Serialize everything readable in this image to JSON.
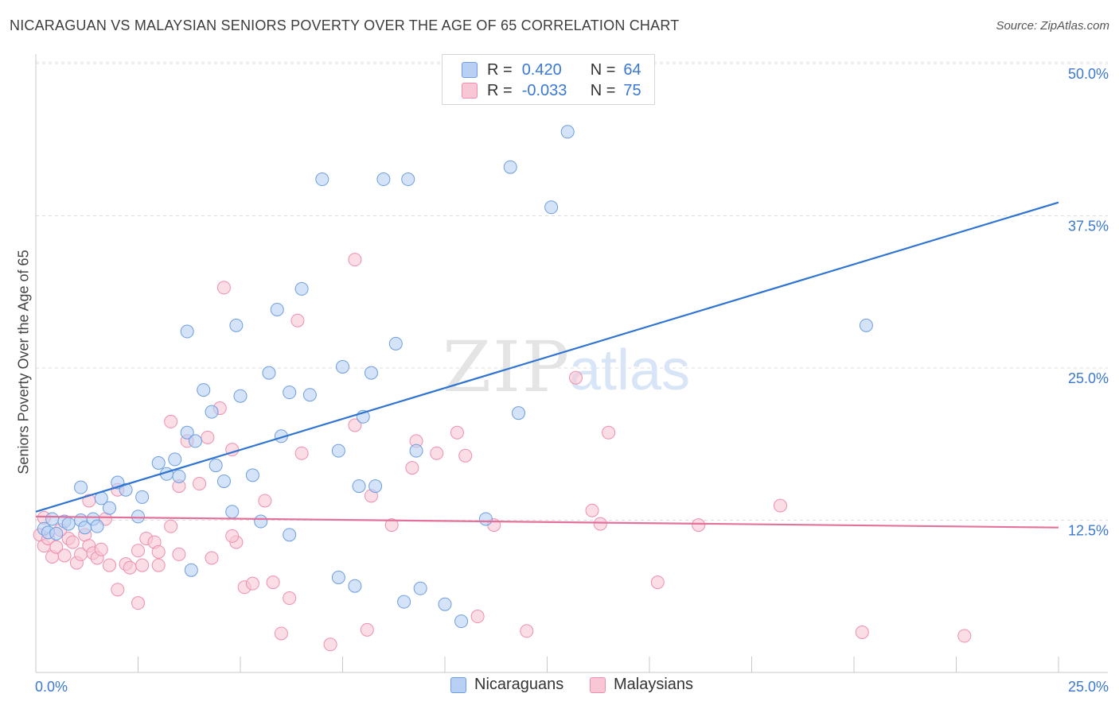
{
  "title": "NICARAGUAN VS MALAYSIAN SENIORS POVERTY OVER THE AGE OF 65 CORRELATION CHART",
  "source": "Source: ZipAtlas.com",
  "watermark": {
    "zip": "ZIP",
    "atlas": "atlas"
  },
  "legend_top": [
    {
      "r_label": "R =",
      "r_value": "0.420",
      "n_label": "N =",
      "n_value": "64"
    },
    {
      "r_label": "R =",
      "r_value": "-0.033",
      "n_label": "N =",
      "n_value": "75"
    }
  ],
  "legend_bottom": [
    "Nicaraguans",
    "Malaysians"
  ],
  "colors": {
    "blue_fill": "#b8d0f4",
    "blue_stroke": "#6d9ee0",
    "blue_line": "#2f74d0",
    "pink_fill": "#f9c6d6",
    "pink_stroke": "#ee8fae",
    "pink_line": "#e4719b",
    "tick_text": "#3a78d4"
  },
  "chart_data": {
    "type": "scatter",
    "xlabel": "",
    "ylabel": "Seniors Poverty Over the Age of 65",
    "xlim": [
      0,
      25
    ],
    "ylim": [
      0,
      50
    ],
    "x_tick_labels": [
      "0.0%",
      "25.0%"
    ],
    "y_ticks": [
      12.5,
      25,
      37.5,
      50
    ],
    "y_tick_labels": [
      "12.5%",
      "25.0%",
      "37.5%",
      "50.0%"
    ],
    "series": [
      {
        "name": "Nicaraguans",
        "r": 0.42,
        "n": 64,
        "trend": [
          [
            0,
            13.2
          ],
          [
            25,
            38.6
          ]
        ],
        "points": [
          [
            0.2,
            11.8
          ],
          [
            0.3,
            11.5
          ],
          [
            0.4,
            12.6
          ],
          [
            0.5,
            11.4
          ],
          [
            0.7,
            12.4
          ],
          [
            0.8,
            12.2
          ],
          [
            1.1,
            12.5
          ],
          [
            1.2,
            11.9
          ],
          [
            1.4,
            12.6
          ],
          [
            1.5,
            12.0
          ],
          [
            1.1,
            15.2
          ],
          [
            1.6,
            14.3
          ],
          [
            1.8,
            13.5
          ],
          [
            2.0,
            15.6
          ],
          [
            2.2,
            15.0
          ],
          [
            2.6,
            14.4
          ],
          [
            2.5,
            12.8
          ],
          [
            3.0,
            17.2
          ],
          [
            3.2,
            16.3
          ],
          [
            3.4,
            17.5
          ],
          [
            3.5,
            16.1
          ],
          [
            3.7,
            19.7
          ],
          [
            3.9,
            19.0
          ],
          [
            3.7,
            28.0
          ],
          [
            4.1,
            23.2
          ],
          [
            4.3,
            21.4
          ],
          [
            4.4,
            17.0
          ],
          [
            4.6,
            15.7
          ],
          [
            4.9,
            28.5
          ],
          [
            5.0,
            22.7
          ],
          [
            5.3,
            16.2
          ],
          [
            5.7,
            24.6
          ],
          [
            5.9,
            29.8
          ],
          [
            6.0,
            19.4
          ],
          [
            6.2,
            23.0
          ],
          [
            6.5,
            31.5
          ],
          [
            6.7,
            22.8
          ],
          [
            7.0,
            40.5
          ],
          [
            7.4,
            18.2
          ],
          [
            7.5,
            25.1
          ],
          [
            7.9,
            15.3
          ],
          [
            8.0,
            21.0
          ],
          [
            8.2,
            24.6
          ],
          [
            8.3,
            15.3
          ],
          [
            8.8,
            27.0
          ],
          [
            8.5,
            40.5
          ],
          [
            9.1,
            40.5
          ],
          [
            9.3,
            18.2
          ],
          [
            11.0,
            12.6
          ],
          [
            11.6,
            41.5
          ],
          [
            11.8,
            21.3
          ],
          [
            12.6,
            38.2
          ],
          [
            13.0,
            44.4
          ],
          [
            20.3,
            28.5
          ],
          [
            7.8,
            7.1
          ],
          [
            7.4,
            7.8
          ],
          [
            9.4,
            6.9
          ],
          [
            9.0,
            5.8
          ],
          [
            10.0,
            5.6
          ],
          [
            10.4,
            4.2
          ],
          [
            6.2,
            11.3
          ],
          [
            5.5,
            12.4
          ],
          [
            4.8,
            13.2
          ],
          [
            3.8,
            8.4
          ]
        ]
      },
      {
        "name": "Malaysians",
        "r": -0.033,
        "n": 75,
        "trend": [
          [
            0,
            12.8
          ],
          [
            25,
            11.9
          ]
        ],
        "points": [
          [
            0.1,
            11.3
          ],
          [
            0.2,
            10.4
          ],
          [
            0.3,
            11.0
          ],
          [
            0.4,
            9.5
          ],
          [
            0.5,
            10.3
          ],
          [
            0.7,
            9.6
          ],
          [
            0.8,
            11.0
          ],
          [
            0.9,
            10.7
          ],
          [
            1.0,
            9.0
          ],
          [
            1.1,
            9.7
          ],
          [
            1.2,
            11.3
          ],
          [
            1.3,
            10.4
          ],
          [
            1.4,
            9.8
          ],
          [
            1.5,
            9.4
          ],
          [
            1.6,
            10.1
          ],
          [
            1.7,
            12.6
          ],
          [
            1.8,
            8.8
          ],
          [
            2.0,
            15.0
          ],
          [
            2.2,
            8.9
          ],
          [
            2.3,
            8.6
          ],
          [
            2.5,
            10.0
          ],
          [
            2.6,
            8.8
          ],
          [
            2.7,
            11.0
          ],
          [
            2.9,
            10.7
          ],
          [
            3.0,
            9.9
          ],
          [
            3.3,
            20.6
          ],
          [
            3.5,
            9.7
          ],
          [
            3.5,
            15.3
          ],
          [
            3.7,
            19.0
          ],
          [
            4.0,
            15.5
          ],
          [
            4.2,
            19.3
          ],
          [
            4.5,
            21.7
          ],
          [
            4.6,
            31.6
          ],
          [
            4.8,
            18.3
          ],
          [
            4.9,
            10.7
          ],
          [
            5.1,
            7.0
          ],
          [
            5.3,
            7.3
          ],
          [
            5.6,
            14.1
          ],
          [
            5.8,
            7.4
          ],
          [
            6.0,
            3.2
          ],
          [
            6.4,
            28.9
          ],
          [
            6.5,
            18.0
          ],
          [
            7.2,
            2.3
          ],
          [
            7.8,
            20.3
          ],
          [
            7.8,
            33.9
          ],
          [
            8.1,
            3.5
          ],
          [
            8.2,
            14.5
          ],
          [
            8.7,
            12.1
          ],
          [
            9.2,
            16.8
          ],
          [
            9.3,
            19.0
          ],
          [
            9.8,
            18.0
          ],
          [
            10.3,
            19.7
          ],
          [
            10.5,
            17.8
          ],
          [
            10.8,
            4.6
          ],
          [
            11.2,
            12.1
          ],
          [
            12.0,
            3.4
          ],
          [
            13.2,
            24.2
          ],
          [
            13.6,
            13.3
          ],
          [
            13.8,
            12.2
          ],
          [
            14.0,
            19.7
          ],
          [
            15.2,
            7.4
          ],
          [
            16.2,
            12.1
          ],
          [
            18.2,
            13.7
          ],
          [
            20.2,
            3.3
          ],
          [
            22.7,
            3.0
          ],
          [
            2.0,
            6.8
          ],
          [
            3.3,
            12.0
          ],
          [
            4.8,
            11.2
          ],
          [
            4.3,
            9.4
          ],
          [
            3.0,
            8.8
          ],
          [
            2.5,
            5.7
          ],
          [
            6.2,
            6.1
          ],
          [
            1.3,
            14.1
          ],
          [
            0.2,
            12.7
          ],
          [
            0.6,
            11.7
          ]
        ]
      }
    ]
  }
}
